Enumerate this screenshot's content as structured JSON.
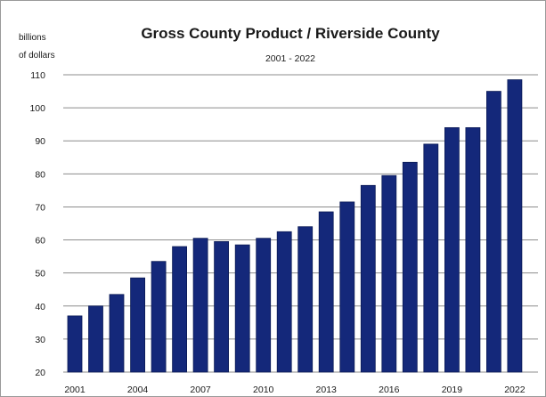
{
  "chart_data": {
    "type": "bar",
    "title": "Gross County Product / Riverside County",
    "subtitle": "2001  -  2022",
    "ylabel_lines": [
      "billions",
      "of dollars"
    ],
    "xlabel": "",
    "ylim": [
      20,
      110
    ],
    "yticks": [
      20,
      30,
      40,
      50,
      60,
      70,
      80,
      90,
      100,
      110
    ],
    "grid": true,
    "legend": "none",
    "bar_color": "#14287a",
    "categories": [
      "2001",
      "2002",
      "2003",
      "2004",
      "2005",
      "2006",
      "2007",
      "2008",
      "2009",
      "2010",
      "2011",
      "2012",
      "2013",
      "2014",
      "2015",
      "2016",
      "2017",
      "2018",
      "2019",
      "2020",
      "2021",
      "2022"
    ],
    "xtick_labels": [
      "2001",
      "2004",
      "2007",
      "2010",
      "2013",
      "2016",
      "2019",
      "2022"
    ],
    "values": [
      37,
      40,
      43.5,
      48.5,
      53.5,
      58,
      60.5,
      59.5,
      58.5,
      60.5,
      62.5,
      64,
      68.5,
      71.5,
      76.5,
      79.5,
      83.5,
      89,
      94,
      94,
      105,
      108.5
    ]
  }
}
